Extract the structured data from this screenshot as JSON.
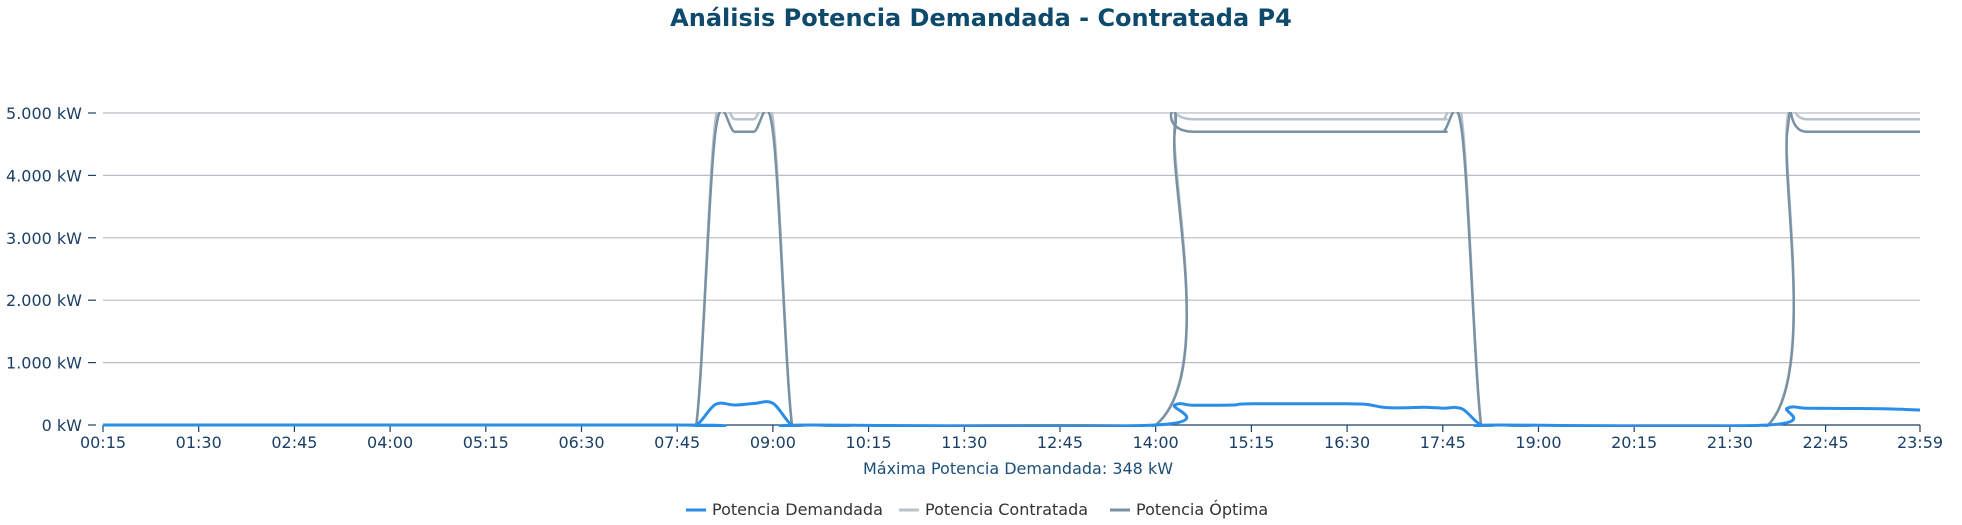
{
  "chart_data": {
    "type": "line",
    "title": "Análisis Potencia Demandada - Contratada P4",
    "subtitle": "Máxima Potencia Demandada: 348 kW",
    "xlabel": "",
    "ylabel": "",
    "ylim": [
      0,
      5000
    ],
    "y_ticks": [
      {
        "value": 0,
        "label": "0 kW"
      },
      {
        "value": 1000,
        "label": "1.000 kW"
      },
      {
        "value": 2000,
        "label": "2.000 kW"
      },
      {
        "value": 3000,
        "label": "3.000 kW"
      },
      {
        "value": 4000,
        "label": "4.000 kW"
      },
      {
        "value": 5000,
        "label": "5.000 kW"
      }
    ],
    "x_ticks": [
      "00:15",
      "01:30",
      "02:45",
      "04:00",
      "05:15",
      "06:30",
      "07:45",
      "09:00",
      "10:15",
      "11:30",
      "12:45",
      "14:00",
      "15:15",
      "16:30",
      "17:45",
      "19:00",
      "20:15",
      "21:30",
      "22:45",
      "23:59"
    ],
    "grid": true,
    "legend_position": "bottom-center",
    "series": [
      {
        "name": "Potencia Demandada",
        "color": "#2a8ee8",
        "points": [
          [
            "00:15",
            0
          ],
          [
            "07:45",
            0
          ],
          [
            "08:00",
            0
          ],
          [
            "08:15",
            330
          ],
          [
            "08:30",
            320
          ],
          [
            "08:45",
            345
          ],
          [
            "09:00",
            348
          ],
          [
            "09:15",
            0
          ],
          [
            "09:30",
            0
          ],
          [
            "14:00",
            0
          ],
          [
            "14:15",
            320
          ],
          [
            "14:30",
            315
          ],
          [
            "15:00",
            320
          ],
          [
            "15:15",
            340
          ],
          [
            "16:30",
            340
          ],
          [
            "16:45",
            330
          ],
          [
            "17:00",
            280
          ],
          [
            "17:15",
            275
          ],
          [
            "17:30",
            285
          ],
          [
            "17:45",
            270
          ],
          [
            "18:00",
            260
          ],
          [
            "18:15",
            0
          ],
          [
            "18:30",
            0
          ],
          [
            "22:00",
            0
          ],
          [
            "22:15",
            270
          ],
          [
            "22:30",
            270
          ],
          [
            "23:00",
            265
          ],
          [
            "23:30",
            260
          ],
          [
            "23:59",
            240
          ]
        ]
      },
      {
        "name": "Potencia Contratada",
        "color": "#b9c3cc",
        "points": [
          [
            "00:15",
            0
          ],
          [
            "07:45",
            0
          ],
          [
            "08:00",
            0
          ],
          [
            "08:15",
            4900
          ],
          [
            "08:30",
            4900
          ],
          [
            "08:45",
            4900
          ],
          [
            "09:00",
            4900
          ],
          [
            "09:15",
            0
          ],
          [
            "09:30",
            0
          ],
          [
            "14:00",
            0
          ],
          [
            "14:15",
            4900
          ],
          [
            "14:30",
            4900
          ],
          [
            "17:30",
            4900
          ],
          [
            "17:45",
            4900
          ],
          [
            "18:00",
            4900
          ],
          [
            "18:15",
            0
          ],
          [
            "18:30",
            0
          ],
          [
            "22:00",
            0
          ],
          [
            "22:15",
            4900
          ],
          [
            "22:30",
            4900
          ],
          [
            "23:59",
            4900
          ]
        ]
      },
      {
        "name": "Potencia Óptima",
        "color": "#7a91a3",
        "points": [
          [
            "00:15",
            0
          ],
          [
            "07:45",
            0
          ],
          [
            "08:00",
            0
          ],
          [
            "08:15",
            4700
          ],
          [
            "08:30",
            4700
          ],
          [
            "08:45",
            4700
          ],
          [
            "09:00",
            4700
          ],
          [
            "09:15",
            0
          ],
          [
            "09:30",
            0
          ],
          [
            "14:00",
            0
          ],
          [
            "14:15",
            4700
          ],
          [
            "14:30",
            4700
          ],
          [
            "17:30",
            4700
          ],
          [
            "17:45",
            4700
          ],
          [
            "18:00",
            4700
          ],
          [
            "18:15",
            0
          ],
          [
            "18:30",
            0
          ],
          [
            "22:00",
            0
          ],
          [
            "22:15",
            4700
          ],
          [
            "22:30",
            4700
          ],
          [
            "23:59",
            4700
          ]
        ]
      }
    ]
  }
}
